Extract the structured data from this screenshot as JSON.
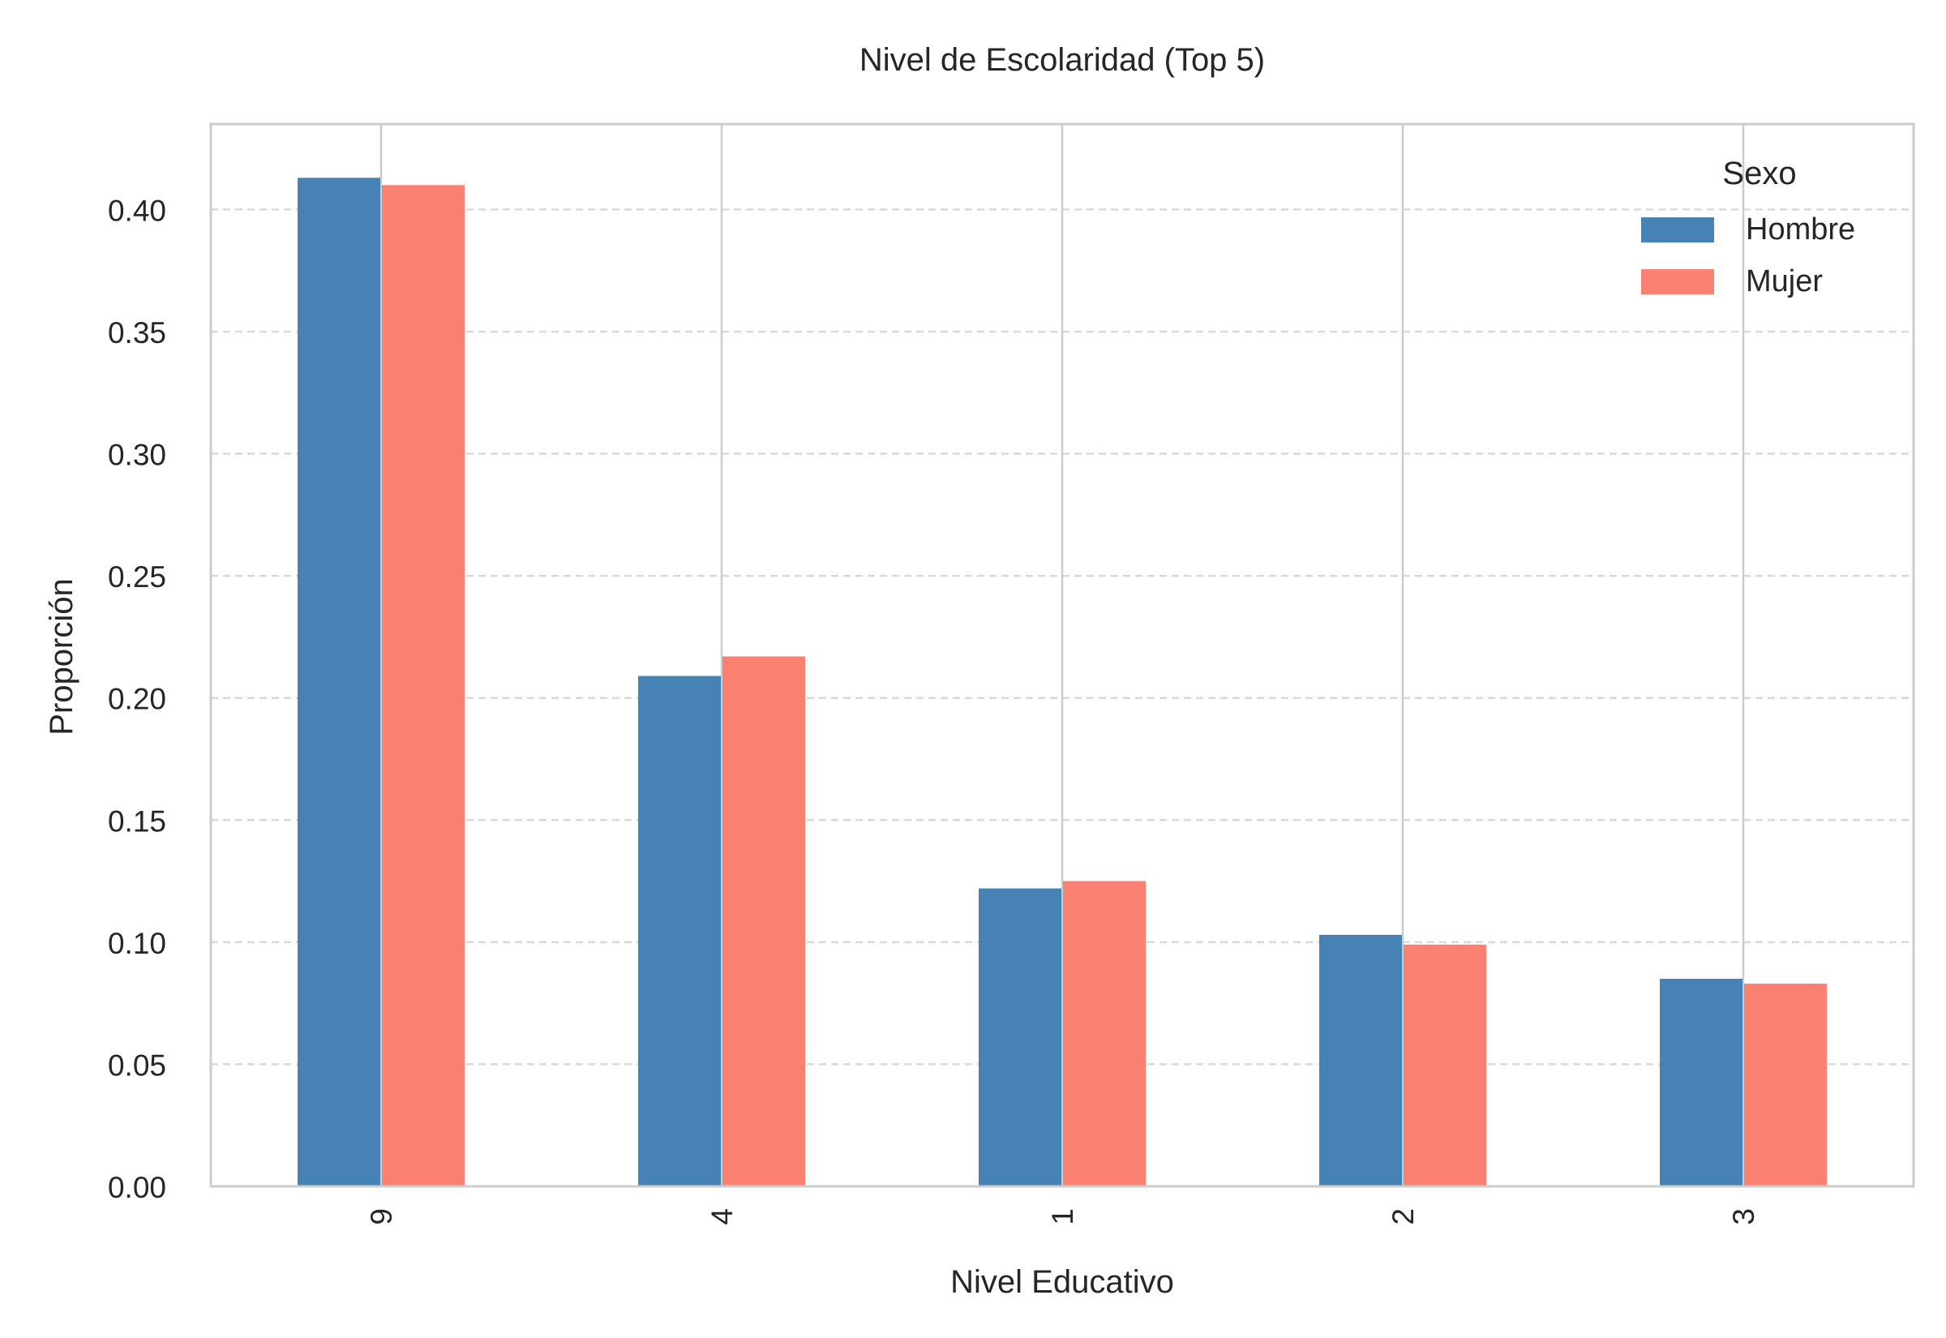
{
  "chart_data": {
    "type": "bar",
    "title": "Nivel de Escolaridad (Top 5)",
    "xlabel": "Nivel Educativo",
    "ylabel": "Proporción",
    "categories": [
      "9",
      "4",
      "1",
      "2",
      "3"
    ],
    "series": [
      {
        "name": "Hombre",
        "color": "#4682B4",
        "values": [
          0.413,
          0.209,
          0.122,
          0.103,
          0.085
        ]
      },
      {
        "name": "Mujer",
        "color": "#FA8072",
        "values": [
          0.41,
          0.217,
          0.125,
          0.099,
          0.083
        ]
      }
    ],
    "ylim": [
      0,
      0.435
    ],
    "yticks": [
      "0.00",
      "0.05",
      "0.10",
      "0.15",
      "0.20",
      "0.25",
      "0.30",
      "0.35",
      "0.40"
    ],
    "grid": {
      "horizontal": "dashed",
      "vertical": "solid"
    },
    "legend": {
      "title": "Sexo",
      "position": "top-right"
    },
    "xtick_rotation": 90
  }
}
